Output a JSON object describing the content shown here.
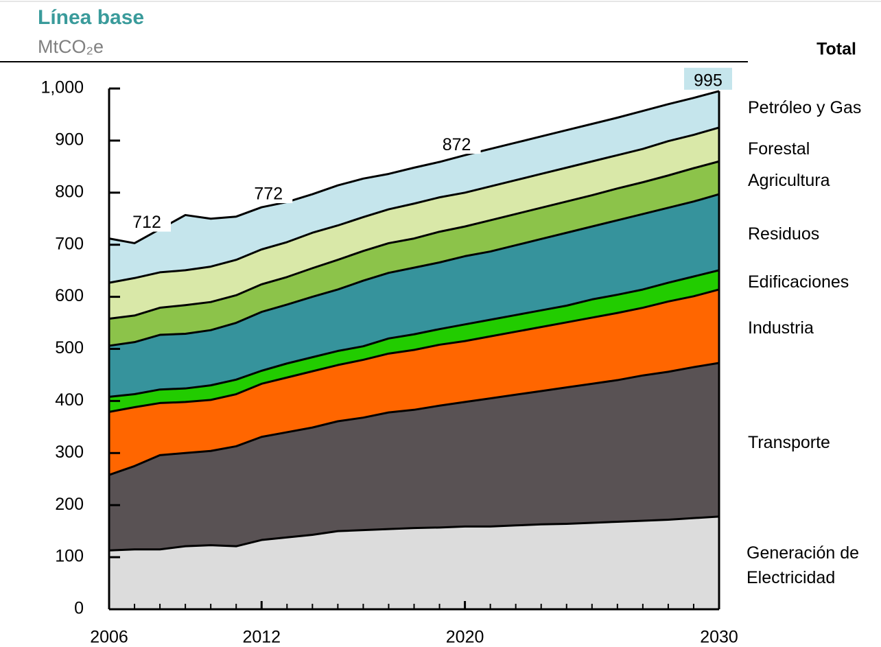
{
  "chart_data": {
    "type": "stacked_area",
    "title": "Línea base",
    "subtitle": "MtCO₂e",
    "legend_title": "Total",
    "x": [
      2006,
      2007,
      2008,
      2009,
      2010,
      2011,
      2012,
      2013,
      2014,
      2015,
      2016,
      2017,
      2018,
      2019,
      2020,
      2021,
      2022,
      2023,
      2024,
      2025,
      2026,
      2027,
      2028,
      2029,
      2030
    ],
    "xticks": [
      2006,
      2012,
      2020,
      2030
    ],
    "xlim": [
      2006,
      2030
    ],
    "ylim": [
      0,
      1000
    ],
    "yticks": [
      0,
      100,
      200,
      300,
      400,
      500,
      600,
      700,
      800,
      900,
      {
        "value": 1000,
        "label": "1,000"
      }
    ],
    "series": [
      {
        "name": "Generación de Electricidad",
        "color": "#dcdcdc",
        "values": [
          113,
          115,
          115,
          121,
          123,
          121,
          133,
          138,
          143,
          150,
          152,
          154,
          156,
          157,
          159,
          159,
          161,
          163,
          164,
          166,
          168,
          170,
          172,
          175,
          178
        ]
      },
      {
        "name": "Transporte",
        "color": "#595254",
        "values": [
          145,
          160,
          181,
          179,
          181,
          192,
          198,
          202,
          206,
          211,
          216,
          224,
          227,
          234,
          239,
          246,
          251,
          256,
          262,
          267,
          272,
          279,
          284,
          290,
          295
        ]
      },
      {
        "name": "Industria",
        "color": "#ff6600",
        "values": [
          121,
          113,
          100,
          98,
          98,
          100,
          102,
          105,
          108,
          108,
          111,
          113,
          115,
          117,
          117,
          119,
          121,
          123,
          125,
          127,
          129,
          130,
          135,
          136,
          141
        ]
      },
      {
        "name": "Edificaciones",
        "color": "#22cc00",
        "values": [
          29,
          25,
          26,
          26,
          28,
          28,
          25,
          27,
          27,
          27,
          26,
          29,
          30,
          30,
          32,
          32,
          32,
          32,
          32,
          35,
          35,
          35,
          36,
          38,
          37
        ]
      },
      {
        "name": "Residuos",
        "color": "#36939c",
        "values": [
          98,
          100,
          105,
          105,
          106,
          109,
          113,
          113,
          116,
          118,
          126,
          126,
          128,
          128,
          131,
          131,
          134,
          137,
          140,
          140,
          143,
          145,
          144,
          144,
          146
        ]
      },
      {
        "name": "Agricultura",
        "color": "#8cc34a",
        "values": [
          52,
          51,
          52,
          55,
          54,
          53,
          53,
          53,
          55,
          57,
          57,
          57,
          56,
          59,
          57,
          60,
          60,
          60,
          60,
          60,
          61,
          61,
          62,
          64,
          63
        ]
      },
      {
        "name": "Forestal",
        "color": "#d9e8a8",
        "values": [
          69,
          72,
          68,
          67,
          68,
          68,
          67,
          67,
          68,
          66,
          65,
          65,
          67,
          66,
          65,
          65,
          65,
          65,
          65,
          65,
          64,
          64,
          66,
          64,
          65
        ]
      },
      {
        "name": "Petróleo y Gas",
        "color": "#c5e5ec",
        "values": [
          85,
          67,
          83,
          106,
          92,
          83,
          81,
          77,
          74,
          77,
          74,
          68,
          69,
          68,
          72,
          72,
          72,
          72,
          72,
          72,
          72,
          73,
          71,
          71,
          70
        ]
      }
    ],
    "annotations": [
      {
        "x": 2006,
        "value": 712
      },
      {
        "x": 2012,
        "value": 772
      },
      {
        "x": 2020,
        "value": 872
      },
      {
        "x": 2030,
        "value": 995
      }
    ]
  }
}
